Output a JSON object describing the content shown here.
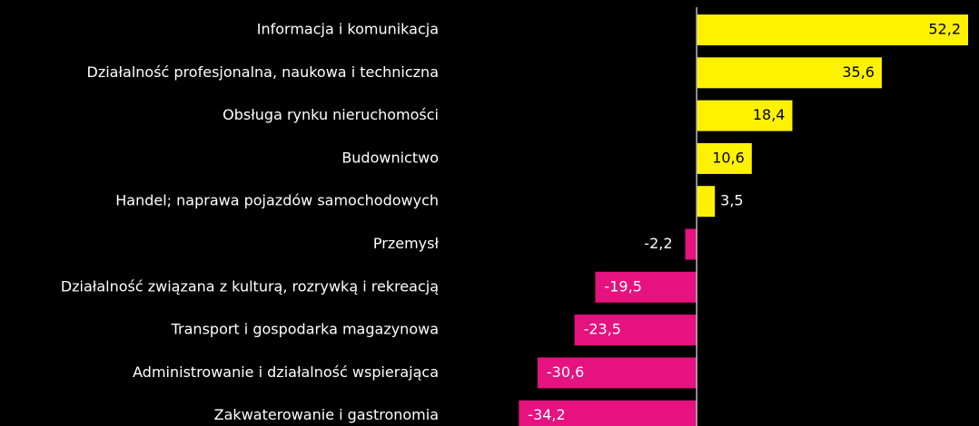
{
  "chart_data": {
    "type": "hbar",
    "categories": [
      "Informacja i komunikacja",
      "Działalność profesjonalna, naukowa i techniczna",
      "Obsługa rynku nieruchomości",
      "Budownictwo",
      "Handel; naprawa pojazdów samochodowych",
      "Przemysł",
      "Działalność związana z kulturą, rozrywką i rekreacją",
      "Transport i gospodarka magazynowa",
      "Administrowanie i działalność wspierająca",
      "Zakwaterowanie i gastronomia"
    ],
    "values": [
      52.2,
      35.6,
      18.4,
      10.6,
      3.5,
      -2.2,
      -19.5,
      -23.5,
      -30.6,
      -34.2
    ],
    "value_labels": [
      "52,2",
      "35,6",
      "18,4",
      "10,6",
      "3,5",
      "-2,2",
      "-19,5",
      "-23,5",
      "-30,6",
      "-34,2"
    ],
    "colors": {
      "positive": "#fff200",
      "negative": "#e5127f"
    },
    "xlim": [
      -36,
      52.2
    ]
  }
}
